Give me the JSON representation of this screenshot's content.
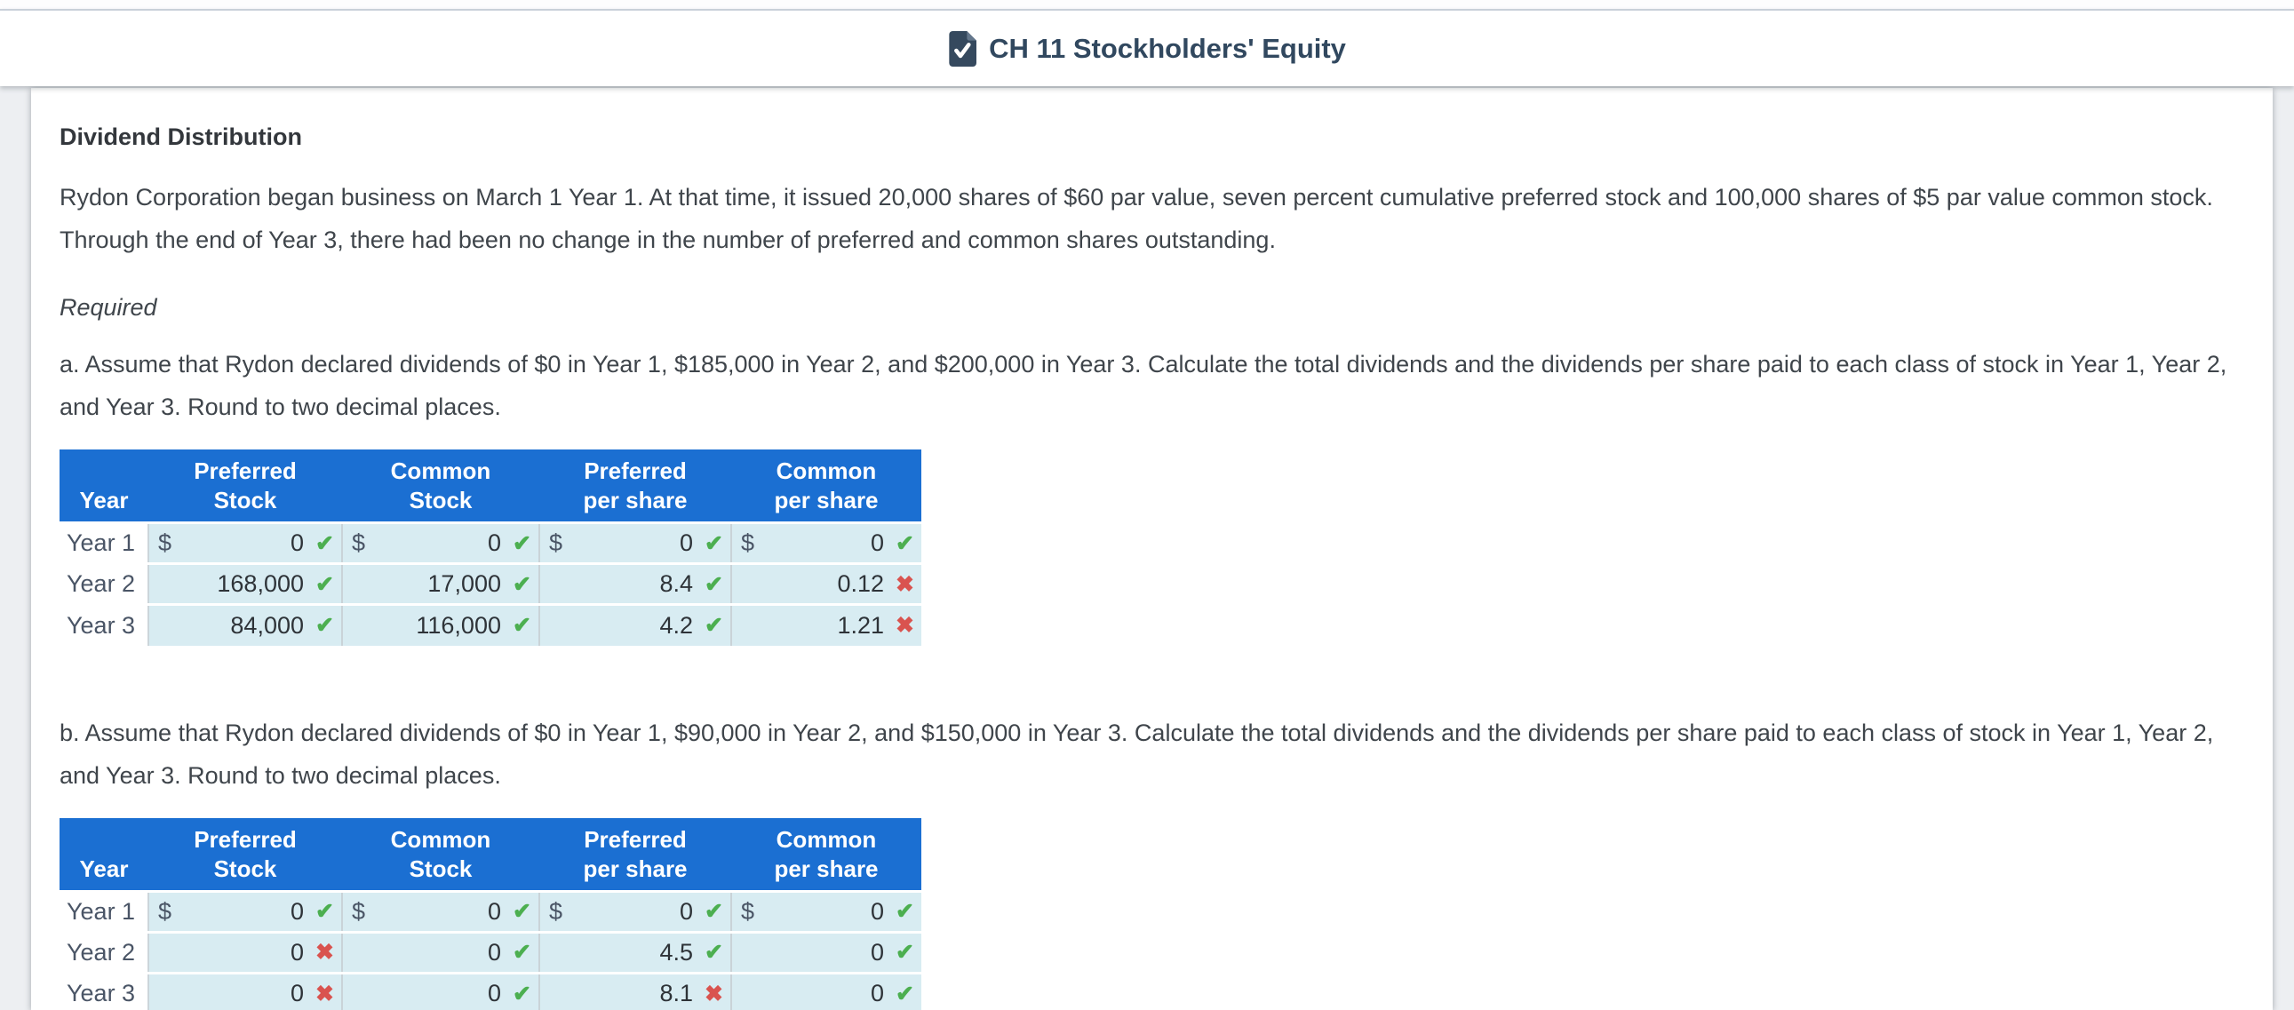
{
  "header": {
    "title": "CH 11 Stockholders' Equity",
    "icon": "document-check-icon"
  },
  "colors": {
    "table_header_blue": "#1b6fd2",
    "answer_cell_blue": "#d8ecf2",
    "check_green": "#4caf50",
    "x_red": "#d9534f",
    "title_navy": "#31485f"
  },
  "marks": {
    "check_glyph": "✔",
    "x_glyph": "✖"
  },
  "problem": {
    "heading": "Dividend Distribution",
    "intro": "Rydon Corporation began business on March 1 Year 1. At that time, it issued 20,000 shares of $60 par value, seven percent cumulative preferred stock and 100,000 shares of $5 par value common stock. Through the end of Year 3, there had been no change in the number of preferred and common shares outstanding.",
    "required_label": "Required",
    "part_a": "a. Assume that Rydon declared dividends of $0 in Year 1, $185,000 in Year 2, and $200,000 in Year 3. Calculate the total dividends and the dividends per share paid to each class of stock in Year 1, Year 2, and Year 3. Round to two decimal places.",
    "part_b": "b. Assume that Rydon declared dividends of $0 in Year 1, $90,000 in Year 2, and $150,000 in Year 3. Calculate the total dividends and the dividends per share paid to each class of stock in Year 1, Year 2, and Year 3. Round to two decimal places."
  },
  "tables": {
    "columns": [
      {
        "key": "year",
        "line1": "",
        "line2": "Year"
      },
      {
        "key": "preferred-stock",
        "line1": "Preferred",
        "line2": "Stock"
      },
      {
        "key": "common-stock",
        "line1": "Common",
        "line2": "Stock"
      },
      {
        "key": "preferred-per-share",
        "line1": "Preferred",
        "line2": "per share"
      },
      {
        "key": "common-per-share",
        "line1": "Common",
        "line2": "per share"
      }
    ],
    "table_a": {
      "rows": [
        {
          "year": "Year 1",
          "cells": [
            {
              "dollar": "$",
              "value": "0",
              "mark": "check"
            },
            {
              "dollar": "$",
              "value": "0",
              "mark": "check"
            },
            {
              "dollar": "$",
              "value": "0",
              "mark": "check"
            },
            {
              "dollar": "$",
              "value": "0",
              "mark": "check"
            }
          ]
        },
        {
          "year": "Year 2",
          "cells": [
            {
              "dollar": "",
              "value": "168,000",
              "mark": "check"
            },
            {
              "dollar": "",
              "value": "17,000",
              "mark": "check"
            },
            {
              "dollar": "",
              "value": "8.4",
              "mark": "check"
            },
            {
              "dollar": "",
              "value": "0.12",
              "mark": "x"
            }
          ]
        },
        {
          "year": "Year 3",
          "cells": [
            {
              "dollar": "",
              "value": "84,000",
              "mark": "check"
            },
            {
              "dollar": "",
              "value": "116,000",
              "mark": "check"
            },
            {
              "dollar": "",
              "value": "4.2",
              "mark": "check"
            },
            {
              "dollar": "",
              "value": "1.21",
              "mark": "x"
            }
          ]
        }
      ]
    },
    "table_b": {
      "rows": [
        {
          "year": "Year 1",
          "cells": [
            {
              "dollar": "$",
              "value": "0",
              "mark": "check"
            },
            {
              "dollar": "$",
              "value": "0",
              "mark": "check"
            },
            {
              "dollar": "$",
              "value": "0",
              "mark": "check"
            },
            {
              "dollar": "$",
              "value": "0",
              "mark": "check"
            }
          ]
        },
        {
          "year": "Year 2",
          "cells": [
            {
              "dollar": "",
              "value": "0",
              "mark": "x"
            },
            {
              "dollar": "",
              "value": "0",
              "mark": "check"
            },
            {
              "dollar": "",
              "value": "4.5",
              "mark": "check"
            },
            {
              "dollar": "",
              "value": "0",
              "mark": "check"
            }
          ]
        },
        {
          "year": "Year 3",
          "cells": [
            {
              "dollar": "",
              "value": "0",
              "mark": "x"
            },
            {
              "dollar": "",
              "value": "0",
              "mark": "check"
            },
            {
              "dollar": "",
              "value": "8.1",
              "mark": "x"
            },
            {
              "dollar": "",
              "value": "0",
              "mark": "check"
            }
          ]
        }
      ]
    }
  }
}
